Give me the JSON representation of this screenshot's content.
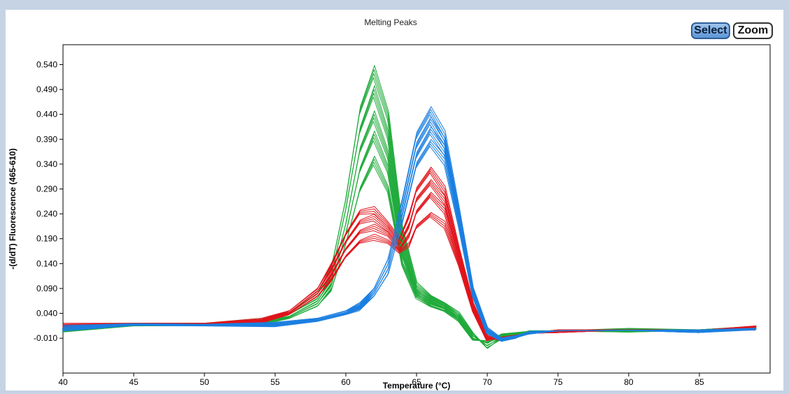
{
  "toolbar": {
    "select_label": "Select",
    "zoom_label": "Zoom"
  },
  "chart_data": {
    "type": "line",
    "title": "Melting Peaks",
    "xlabel": "Temperature (°C)",
    "ylabel": "-(d/dT) Fluorescence (465-610)",
    "xlim": [
      40,
      90
    ],
    "ylim": [
      -0.08,
      0.58
    ],
    "x_ticks": [
      40,
      45,
      50,
      55,
      60,
      65,
      70,
      75,
      80,
      85
    ],
    "y_ticks": [
      -0.01,
      0.04,
      0.09,
      0.14,
      0.19,
      0.24,
      0.29,
      0.34,
      0.39,
      0.44,
      0.49,
      0.54
    ],
    "x_tick_labels": [
      "40",
      "45",
      "50",
      "55",
      "60",
      "65",
      "70",
      "75",
      "80",
      "85"
    ],
    "y_tick_labels": [
      "-0.010",
      "0.040",
      "0.090",
      "0.140",
      "0.190",
      "0.240",
      "0.290",
      "0.340",
      "0.390",
      "0.440",
      "0.490",
      "0.540"
    ],
    "grid": false,
    "legend": "none",
    "colors": {
      "green": "#1faa3a",
      "red": "#e0141b",
      "blue": "#1b7fe0"
    },
    "series": [
      {
        "color": "green",
        "x": [
          40,
          45,
          50,
          54,
          56,
          58,
          59,
          60,
          61,
          62,
          63,
          64,
          65,
          66,
          67,
          68,
          69,
          70,
          71,
          73,
          75,
          80,
          85,
          89
        ],
        "y": [
          0.012,
          0.02,
          0.02,
          0.028,
          0.042,
          0.08,
          0.135,
          0.27,
          0.45,
          0.53,
          0.44,
          0.21,
          0.1,
          0.075,
          0.06,
          0.04,
          0.0,
          -0.03,
          -0.01,
          0.005,
          0.005,
          0.008,
          0.007,
          0.014
        ]
      },
      {
        "color": "green",
        "x": [
          40,
          45,
          50,
          54,
          56,
          58,
          59,
          60,
          61,
          62,
          63,
          64,
          65,
          66,
          67,
          68,
          69,
          70,
          71,
          73,
          75,
          80,
          85,
          89
        ],
        "y": [
          0.01,
          0.018,
          0.018,
          0.025,
          0.038,
          0.07,
          0.12,
          0.25,
          0.41,
          0.49,
          0.4,
          0.19,
          0.09,
          0.07,
          0.055,
          0.035,
          -0.005,
          -0.025,
          -0.008,
          0.004,
          0.005,
          0.007,
          0.006,
          0.012
        ]
      },
      {
        "color": "green",
        "x": [
          40,
          45,
          50,
          54,
          56,
          58,
          59,
          60,
          61,
          62,
          63,
          64,
          65,
          66,
          67,
          68,
          69,
          70,
          71,
          73,
          75,
          80,
          85,
          89
        ],
        "y": [
          0.008,
          0.017,
          0.018,
          0.023,
          0.034,
          0.065,
          0.11,
          0.22,
          0.37,
          0.44,
          0.36,
          0.17,
          0.085,
          0.065,
          0.05,
          0.03,
          -0.01,
          -0.02,
          -0.005,
          0.004,
          0.005,
          0.007,
          0.006,
          0.011
        ]
      },
      {
        "color": "green",
        "x": [
          40,
          45,
          50,
          54,
          56,
          58,
          59,
          60,
          61,
          62,
          63,
          64,
          65,
          66,
          67,
          68,
          69,
          70,
          71,
          73,
          75,
          80,
          85,
          89
        ],
        "y": [
          0.007,
          0.016,
          0.017,
          0.022,
          0.032,
          0.06,
          0.1,
          0.2,
          0.33,
          0.4,
          0.33,
          0.16,
          0.08,
          0.06,
          0.05,
          0.03,
          -0.012,
          -0.018,
          -0.004,
          0.004,
          0.005,
          0.006,
          0.006,
          0.01
        ]
      },
      {
        "color": "green",
        "x": [
          40,
          45,
          50,
          54,
          56,
          58,
          59,
          60,
          61,
          62,
          63,
          64,
          65,
          66,
          67,
          68,
          69,
          70,
          71,
          73,
          75,
          80,
          85,
          89
        ],
        "y": [
          0.006,
          0.015,
          0.016,
          0.021,
          0.03,
          0.055,
          0.09,
          0.18,
          0.29,
          0.35,
          0.29,
          0.14,
          0.075,
          0.055,
          0.045,
          0.028,
          -0.014,
          -0.015,
          -0.003,
          0.004,
          0.005,
          0.006,
          0.006,
          0.009
        ]
      },
      {
        "color": "red",
        "x": [
          40,
          45,
          50,
          54,
          56,
          58,
          59,
          60,
          61,
          62,
          63,
          63.8,
          64.5,
          65,
          66,
          67,
          68,
          69,
          70,
          71,
          73,
          75,
          80,
          85,
          89
        ],
        "y": [
          0.018,
          0.02,
          0.02,
          0.028,
          0.045,
          0.09,
          0.14,
          0.2,
          0.245,
          0.25,
          0.22,
          0.19,
          0.24,
          0.29,
          0.33,
          0.29,
          0.17,
          0.06,
          -0.005,
          -0.015,
          0.0,
          0.005,
          0.007,
          0.006,
          0.013
        ]
      },
      {
        "color": "red",
        "x": [
          40,
          45,
          50,
          54,
          56,
          58,
          59,
          60,
          61,
          62,
          63,
          63.8,
          64.5,
          65,
          66,
          67,
          68,
          69,
          70,
          71,
          73,
          75,
          80,
          85,
          89
        ],
        "y": [
          0.015,
          0.019,
          0.019,
          0.026,
          0.042,
          0.085,
          0.13,
          0.185,
          0.225,
          0.235,
          0.21,
          0.18,
          0.22,
          0.27,
          0.305,
          0.27,
          0.16,
          0.055,
          -0.008,
          -0.012,
          0.0,
          0.005,
          0.007,
          0.006,
          0.012
        ]
      },
      {
        "color": "red",
        "x": [
          40,
          45,
          50,
          54,
          56,
          58,
          59,
          60,
          61,
          62,
          63,
          63.8,
          64.5,
          65,
          66,
          67,
          68,
          69,
          70,
          71,
          73,
          75,
          80,
          85,
          89
        ],
        "y": [
          0.013,
          0.018,
          0.019,
          0.025,
          0.04,
          0.08,
          0.12,
          0.17,
          0.205,
          0.215,
          0.2,
          0.17,
          0.2,
          0.245,
          0.28,
          0.25,
          0.15,
          0.05,
          -0.01,
          -0.01,
          0.0,
          0.005,
          0.007,
          0.006,
          0.011
        ]
      },
      {
        "color": "red",
        "x": [
          40,
          45,
          50,
          54,
          56,
          58,
          59,
          60,
          61,
          62,
          63,
          63.8,
          64.5,
          65,
          66,
          67,
          68,
          69,
          70,
          71,
          73,
          75,
          80,
          85,
          89
        ],
        "y": [
          0.012,
          0.017,
          0.018,
          0.024,
          0.038,
          0.075,
          0.11,
          0.155,
          0.185,
          0.195,
          0.185,
          0.165,
          0.18,
          0.215,
          0.24,
          0.22,
          0.14,
          0.045,
          -0.012,
          -0.008,
          0.0,
          0.005,
          0.007,
          0.006,
          0.01
        ]
      },
      {
        "color": "blue",
        "x": [
          40,
          45,
          50,
          55,
          58,
          60,
          61,
          62,
          63,
          64,
          65,
          66,
          67,
          68,
          69,
          70,
          71,
          72,
          73,
          75,
          80,
          85,
          89
        ],
        "y": [
          0.014,
          0.019,
          0.018,
          0.02,
          0.03,
          0.045,
          0.06,
          0.09,
          0.15,
          0.27,
          0.4,
          0.45,
          0.4,
          0.25,
          0.09,
          0.01,
          -0.01,
          -0.005,
          0.002,
          0.005,
          0.006,
          0.005,
          0.01
        ]
      },
      {
        "color": "blue",
        "x": [
          40,
          45,
          50,
          55,
          58,
          60,
          61,
          62,
          63,
          64,
          65,
          66,
          67,
          68,
          69,
          70,
          71,
          72,
          73,
          75,
          80,
          85,
          89
        ],
        "y": [
          0.012,
          0.018,
          0.017,
          0.019,
          0.028,
          0.042,
          0.056,
          0.085,
          0.14,
          0.255,
          0.38,
          0.43,
          0.385,
          0.24,
          0.085,
          0.008,
          -0.012,
          -0.006,
          0.002,
          0.005,
          0.006,
          0.005,
          0.009
        ]
      },
      {
        "color": "blue",
        "x": [
          40,
          45,
          50,
          55,
          58,
          60,
          61,
          62,
          63,
          64,
          65,
          66,
          67,
          68,
          69,
          70,
          71,
          72,
          73,
          75,
          80,
          85,
          89
        ],
        "y": [
          0.01,
          0.017,
          0.016,
          0.018,
          0.026,
          0.04,
          0.053,
          0.08,
          0.13,
          0.24,
          0.36,
          0.41,
          0.37,
          0.23,
          0.08,
          0.005,
          -0.014,
          -0.008,
          0.002,
          0.005,
          0.006,
          0.005,
          0.008
        ]
      },
      {
        "color": "blue",
        "x": [
          40,
          45,
          50,
          55,
          58,
          60,
          61,
          62,
          63,
          64,
          65,
          66,
          67,
          68,
          69,
          70,
          71,
          72,
          73,
          75,
          80,
          85,
          89
        ],
        "y": [
          0.008,
          0.016,
          0.015,
          0.017,
          0.024,
          0.038,
          0.05,
          0.075,
          0.12,
          0.225,
          0.34,
          0.385,
          0.35,
          0.22,
          0.075,
          0.003,
          -0.016,
          -0.01,
          0.002,
          0.005,
          0.006,
          0.005,
          0.007
        ]
      }
    ]
  }
}
